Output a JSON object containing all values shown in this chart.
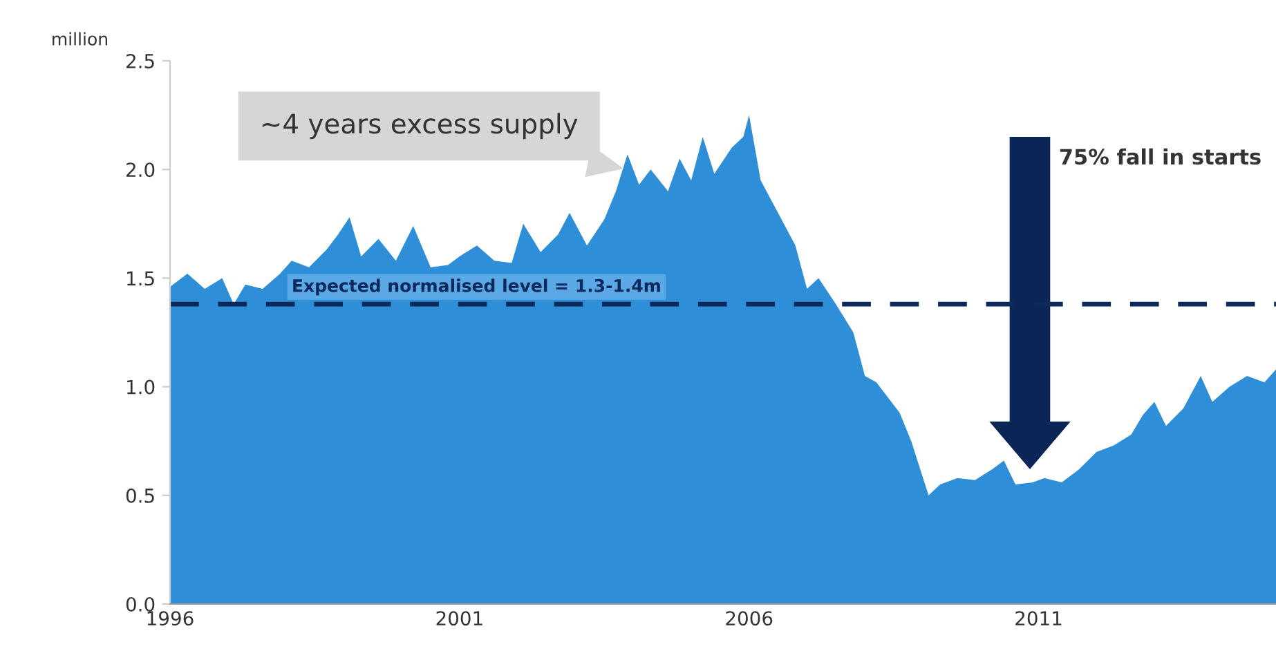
{
  "chart_data": {
    "type": "area",
    "ylabel": "million",
    "color": "#2e8fd8",
    "x": [
      1996.0,
      1996.3,
      1996.6,
      1996.9,
      1997.1,
      1997.3,
      1997.6,
      1997.9,
      1998.1,
      1998.4,
      1998.7,
      1998.9,
      1999.1,
      1999.3,
      1999.6,
      1999.9,
      2000.2,
      2000.5,
      2000.8,
      2001.0,
      2001.3,
      2001.6,
      2001.9,
      2002.1,
      2002.4,
      2002.7,
      2002.9,
      2003.2,
      2003.5,
      2003.7,
      2003.9,
      2004.1,
      2004.3,
      2004.6,
      2004.8,
      2005.0,
      2005.2,
      2005.4,
      2005.7,
      2005.9,
      2006.0,
      2006.2,
      2006.5,
      2006.8,
      2007.0,
      2007.2,
      2007.5,
      2007.8,
      2008.0,
      2008.2,
      2008.4,
      2008.6,
      2008.8,
      2009.1,
      2009.3,
      2009.6,
      2009.9,
      2010.2,
      2010.4,
      2010.6,
      2010.9,
      2011.1,
      2011.4,
      2011.7,
      2012.0,
      2012.3,
      2012.6,
      2012.8,
      2013.0,
      2013.2,
      2013.5,
      2013.8,
      2014.0,
      2014.3,
      2014.6,
      2014.9,
      2015.1
    ],
    "values": [
      1.46,
      1.52,
      1.45,
      1.5,
      1.38,
      1.47,
      1.45,
      1.52,
      1.58,
      1.55,
      1.63,
      1.7,
      1.78,
      1.6,
      1.68,
      1.58,
      1.74,
      1.55,
      1.56,
      1.6,
      1.65,
      1.58,
      1.57,
      1.75,
      1.62,
      1.7,
      1.8,
      1.65,
      1.77,
      1.9,
      2.07,
      1.93,
      2.0,
      1.9,
      2.05,
      1.95,
      2.15,
      1.98,
      2.1,
      2.15,
      2.25,
      1.95,
      1.8,
      1.65,
      1.45,
      1.5,
      1.38,
      1.25,
      1.05,
      1.02,
      0.95,
      0.88,
      0.75,
      0.5,
      0.55,
      0.58,
      0.57,
      0.62,
      0.66,
      0.55,
      0.56,
      0.58,
      0.56,
      0.62,
      0.7,
      0.73,
      0.78,
      0.87,
      0.93,
      0.82,
      0.9,
      1.05,
      0.93,
      1.0,
      1.05,
      1.02,
      1.08
    ],
    "xlim": [
      1996,
      2015.1
    ],
    "ylim": [
      0,
      2.5
    ],
    "xticks": [
      1996,
      2001,
      2006,
      2011
    ],
    "yticks": [
      {
        "value": 0,
        "label": "0.0"
      },
      {
        "value": 0.5,
        "label": "0.5"
      },
      {
        "value": 1,
        "label": "1.0"
      },
      {
        "value": 1.5,
        "label": "1.5"
      },
      {
        "value": 2,
        "label": "2.0"
      },
      {
        "value": 2.5,
        "label": "2.5"
      }
    ],
    "ref_lines": [
      {
        "axis": "y",
        "value": 1.38,
        "color": "#0b2a5b",
        "line_style": "dashed"
      }
    ],
    "annotations": [
      {
        "text": "~4 years excess supply",
        "x": 2003.9,
        "y": 2.0
      },
      "75% fall in starts",
      "Expected normalised level = 1.3-1.4m"
    ],
    "grid": false
  }
}
